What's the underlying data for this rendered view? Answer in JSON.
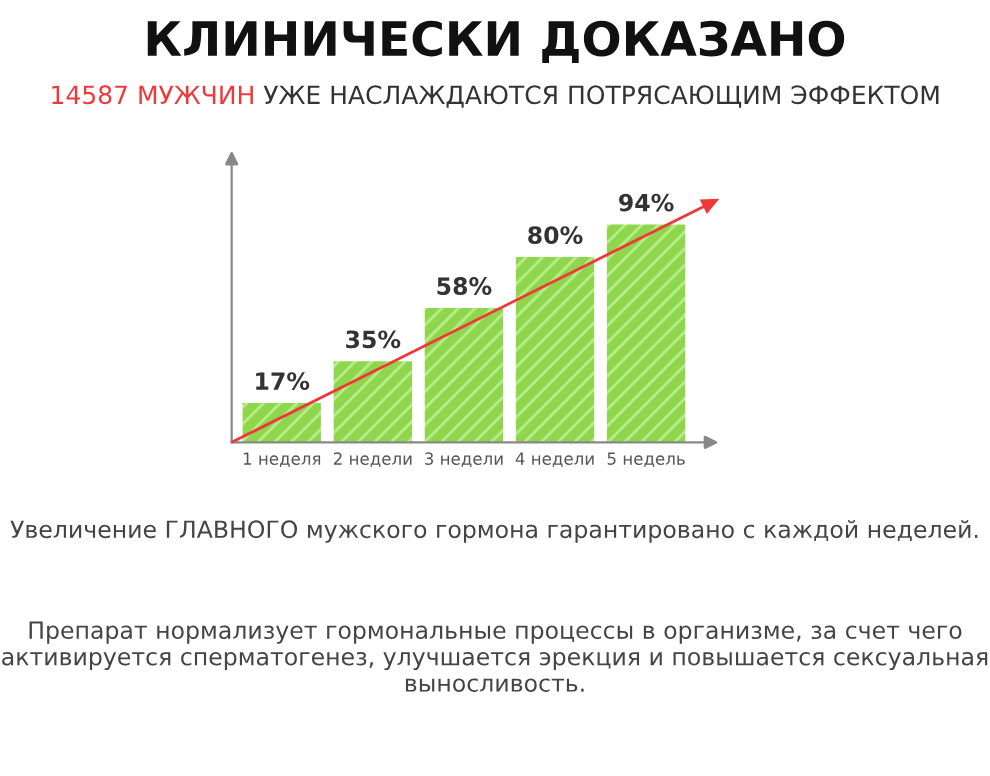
{
  "chart_data": {
    "type": "bar",
    "title": "КЛИНИЧЕСКИ ДОКАЗАНО",
    "subtitle": "14587 МУЖЧИН УЖЕ НАСЛАЖДАЮТСЯ ПОТРЯСАЮЩИМ ЭФФЕКТОМ",
    "categories": [
      "1 неделя",
      "2 недели",
      "3 недели",
      "4 недели",
      "5 недель"
    ],
    "values": [
      17,
      35,
      58,
      80,
      94
    ],
    "value_labels": [
      "17%",
      "35%",
      "58%",
      "80%",
      "94%"
    ],
    "color": "#8ed64c",
    "tick_labels": "x",
    "grid": false,
    "legend": false,
    "annotations": [
      "Увеличение ГЛАВНОГО мужского гормона гарантировано с каждой неделей.",
      "Препарат нормализует гормональные процессы в организме, за счет чего активируется сперматогенез, улучшается эрекция и повышается сексуальная выносливость."
    ]
  }
}
